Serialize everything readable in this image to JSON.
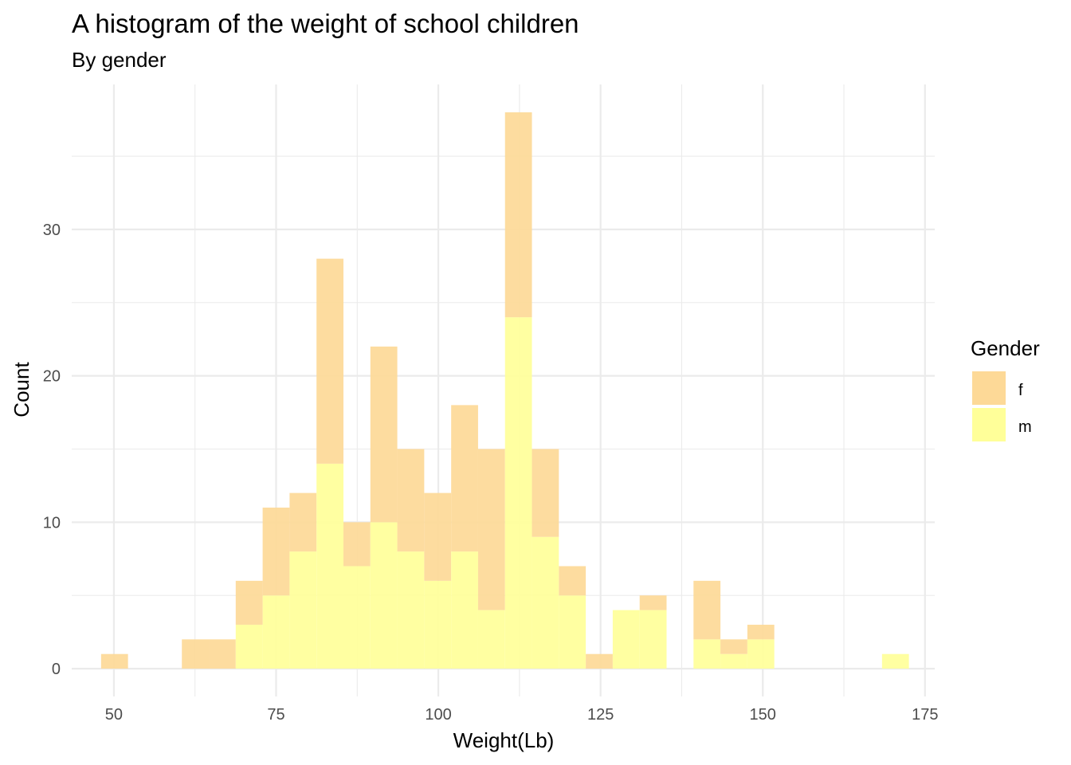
{
  "chart_data": {
    "type": "bar",
    "stacked": true,
    "title": "A histogram of the weight of school children",
    "subtitle": "By gender",
    "xlabel": "Weight(Lb)",
    "ylabel": "Count",
    "xlim": [
      43.5,
      176.5
    ],
    "ylim": [
      -1.9,
      39.9
    ],
    "xticks": [
      50,
      75,
      100,
      125,
      150,
      175
    ],
    "yticks": [
      0,
      10,
      20,
      30
    ],
    "grid": true,
    "legend": {
      "title": "Gender",
      "position": "right"
    },
    "bin_width": 4.15,
    "bin_centers": [
      50.1,
      54.25,
      58.4,
      62.55,
      66.7,
      70.85,
      75.0,
      79.15,
      83.3,
      87.45,
      91.6,
      95.75,
      99.9,
      104.05,
      108.2,
      112.35,
      116.5,
      120.65,
      124.8,
      128.95,
      133.1,
      137.25,
      141.4,
      145.55,
      149.7,
      153.85,
      158.0,
      162.15,
      166.3,
      170.45
    ],
    "series": [
      {
        "name": "f",
        "color": "#FDD997",
        "values": [
          1,
          0,
          0,
          2,
          2,
          3,
          6,
          4,
          14,
          3,
          12,
          7,
          6,
          10,
          11,
          14,
          6,
          2,
          1,
          0,
          1,
          0,
          4,
          1,
          1,
          0,
          0,
          0,
          0,
          0
        ]
      },
      {
        "name": "m",
        "color": "#FFFF99",
        "values": [
          0,
          0,
          0,
          0,
          0,
          3,
          5,
          8,
          14,
          7,
          10,
          8,
          6,
          8,
          4,
          24,
          9,
          5,
          0,
          4,
          4,
          0,
          2,
          1,
          2,
          0,
          0,
          0,
          0,
          1
        ]
      }
    ]
  }
}
